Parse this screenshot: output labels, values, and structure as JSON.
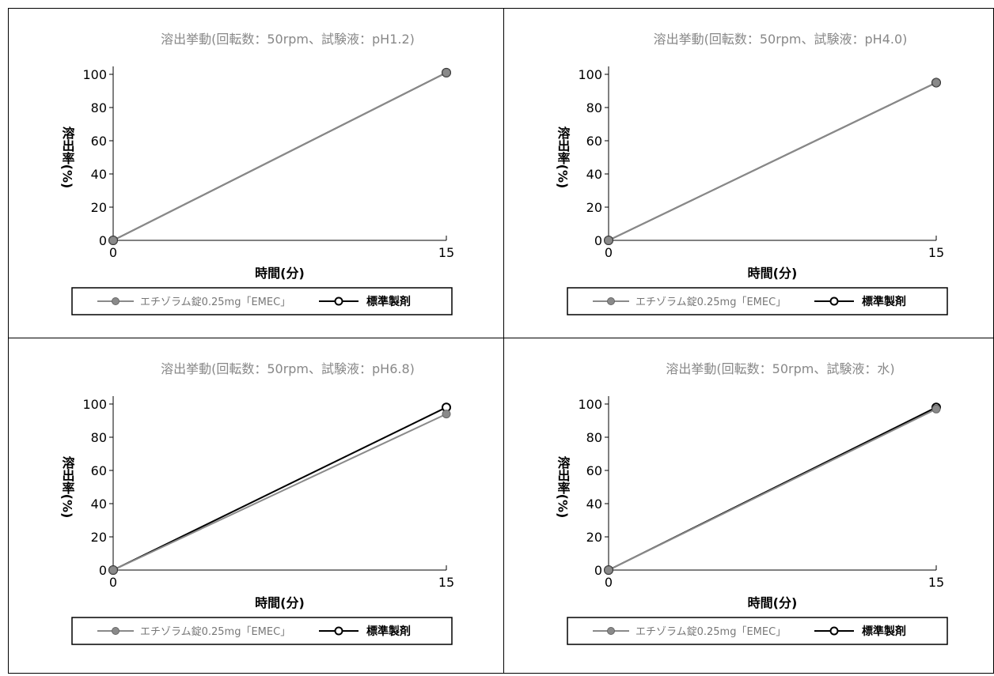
{
  "colors": {
    "test": "#8a8a8a",
    "reference": "#000000",
    "title": "#888888"
  },
  "legend": {
    "test_label": "エチゾラム錠0.25mg「EMEC」",
    "reference_label": "標準製剤"
  },
  "chart_data": [
    {
      "type": "line",
      "title": "溶出挙動(回転数：50rpm、試験液：pH1.2)",
      "xlabel": "時間(分)",
      "ylabel": "溶出率(%)",
      "x": [
        0,
        15
      ],
      "x_ticks": [
        0,
        15
      ],
      "y_ticks": [
        0,
        20,
        40,
        60,
        80,
        100
      ],
      "xlim": [
        0,
        15
      ],
      "ylim": [
        0,
        100
      ],
      "grid": false,
      "legend_position": "bottom",
      "series": [
        {
          "name": "エチゾラム錠0.25mg「EMEC」",
          "values": [
            0,
            101
          ],
          "marker": "filled-circle"
        },
        {
          "name": "標準製剤",
          "values": [
            0,
            101
          ],
          "marker": "open-circle"
        }
      ]
    },
    {
      "type": "line",
      "title": "溶出挙動(回転数：50rpm、試験液：pH4.0)",
      "xlabel": "時間(分)",
      "ylabel": "溶出率(%)",
      "x": [
        0,
        15
      ],
      "x_ticks": [
        0,
        15
      ],
      "y_ticks": [
        0,
        20,
        40,
        60,
        80,
        100
      ],
      "xlim": [
        0,
        15
      ],
      "ylim": [
        0,
        100
      ],
      "grid": false,
      "legend_position": "bottom",
      "series": [
        {
          "name": "エチゾラム錠0.25mg「EMEC」",
          "values": [
            0,
            95
          ],
          "marker": "filled-circle"
        },
        {
          "name": "標準製剤",
          "values": [
            0,
            95
          ],
          "marker": "open-circle"
        }
      ]
    },
    {
      "type": "line",
      "title": "溶出挙動(回転数：50rpm、試験液：pH6.8)",
      "xlabel": "時間(分)",
      "ylabel": "溶出率(%)",
      "x": [
        0,
        15
      ],
      "x_ticks": [
        0,
        15
      ],
      "y_ticks": [
        0,
        20,
        40,
        60,
        80,
        100
      ],
      "xlim": [
        0,
        15
      ],
      "ylim": [
        0,
        100
      ],
      "grid": false,
      "legend_position": "bottom",
      "series": [
        {
          "name": "エチゾラム錠0.25mg「EMEC」",
          "values": [
            0,
            94
          ],
          "marker": "filled-circle"
        },
        {
          "name": "標準製剤",
          "values": [
            0,
            98
          ],
          "marker": "open-circle"
        }
      ]
    },
    {
      "type": "line",
      "title": "溶出挙動(回転数：50rpm、試験液：水)",
      "xlabel": "時間(分)",
      "ylabel": "溶出率(%)",
      "x": [
        0,
        15
      ],
      "x_ticks": [
        0,
        15
      ],
      "y_ticks": [
        0,
        20,
        40,
        60,
        80,
        100
      ],
      "xlim": [
        0,
        15
      ],
      "ylim": [
        0,
        100
      ],
      "grid": false,
      "legend_position": "bottom",
      "series": [
        {
          "name": "エチゾラム錠0.25mg「EMEC」",
          "values": [
            0,
            97
          ],
          "marker": "filled-circle"
        },
        {
          "name": "標準製剤",
          "values": [
            0,
            98
          ],
          "marker": "open-circle"
        }
      ]
    }
  ]
}
